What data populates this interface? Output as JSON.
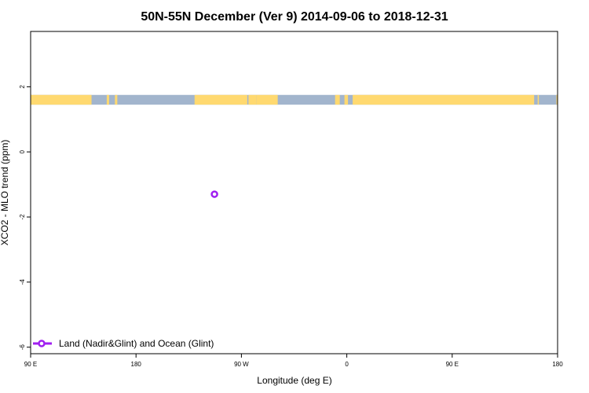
{
  "chart_data": {
    "type": "scatter",
    "title": "50N-55N December (Ver 9)   2014-09-06 to 2018-12-31",
    "xlabel": "Longitude (deg E)",
    "ylabel": "XCO2 - MLO trend (ppm)",
    "x_ticks": [
      {
        "value": 90,
        "label": "90 E"
      },
      {
        "value": 180,
        "label": "180"
      },
      {
        "value": 270,
        "label": "90 W"
      },
      {
        "value": 360,
        "label": "0"
      },
      {
        "value": 450,
        "label": "90 E"
      },
      {
        "value": 540,
        "label": "180"
      }
    ],
    "y_ticks": [
      {
        "value": 2,
        "label": "2"
      },
      {
        "value": 0,
        "label": "0"
      },
      {
        "value": -2,
        "label": "-2"
      },
      {
        "value": -4,
        "label": "-4"
      },
      {
        "value": -6,
        "label": "-6"
      }
    ],
    "xlim": [
      90,
      540
    ],
    "ylim": [
      -6.2,
      3.7
    ],
    "legend_position": "bottom-left",
    "series": [
      {
        "name": "Land (Nadir&Glint) and Ocean (Glint)",
        "color": "#a020f0",
        "marker": "open-circle",
        "points": [
          {
            "x": 247,
            "y": -1.3
          }
        ]
      }
    ],
    "land_mask_band": {
      "y_range": [
        1.45,
        1.75
      ],
      "ocean_color": "#a2b5cd",
      "land_color": "#ffd970",
      "land_segments": [
        [
          90,
          142
        ],
        [
          155,
          157
        ],
        [
          162,
          164
        ],
        [
          230,
          275
        ],
        [
          276,
          283
        ],
        [
          283,
          301
        ],
        [
          350,
          354
        ],
        [
          358,
          361
        ],
        [
          365,
          520
        ],
        [
          523,
          524
        ],
        [
          539,
          540
        ]
      ]
    }
  }
}
